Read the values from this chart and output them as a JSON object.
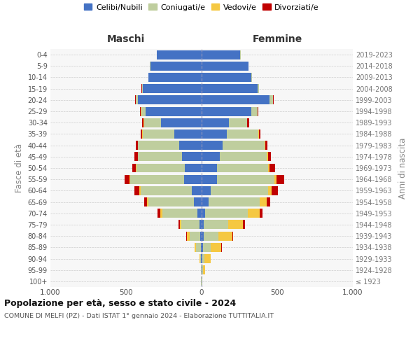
{
  "age_groups": [
    "100+",
    "95-99",
    "90-94",
    "85-89",
    "80-84",
    "75-79",
    "70-74",
    "65-69",
    "60-64",
    "55-59",
    "50-54",
    "45-49",
    "40-44",
    "35-39",
    "30-34",
    "25-29",
    "20-24",
    "15-19",
    "10-14",
    "5-9",
    "0-4"
  ],
  "birth_years": [
    "≤ 1923",
    "1924-1928",
    "1929-1933",
    "1934-1938",
    "1939-1943",
    "1944-1948",
    "1949-1953",
    "1954-1958",
    "1959-1963",
    "1964-1968",
    "1969-1973",
    "1974-1978",
    "1979-1983",
    "1984-1988",
    "1989-1993",
    "1994-1998",
    "1999-2003",
    "2004-2008",
    "2009-2013",
    "2014-2018",
    "2019-2023"
  ],
  "males": {
    "celibi": [
      2,
      2,
      3,
      5,
      10,
      15,
      30,
      50,
      65,
      115,
      110,
      130,
      150,
      180,
      270,
      370,
      420,
      390,
      350,
      340,
      295
    ],
    "coniugati": [
      1,
      2,
      8,
      30,
      70,
      120,
      230,
      300,
      340,
      355,
      320,
      290,
      270,
      210,
      110,
      30,
      15,
      5,
      2,
      2,
      2
    ],
    "vedovi": [
      0,
      2,
      5,
      10,
      15,
      10,
      15,
      10,
      8,
      5,
      3,
      3,
      2,
      2,
      2,
      2,
      2,
      0,
      0,
      0,
      0
    ],
    "divorziati": [
      0,
      0,
      0,
      2,
      5,
      8,
      15,
      20,
      30,
      35,
      25,
      20,
      15,
      12,
      10,
      5,
      3,
      2,
      0,
      0,
      0
    ]
  },
  "females": {
    "nubili": [
      2,
      3,
      5,
      8,
      12,
      15,
      25,
      45,
      60,
      100,
      100,
      120,
      140,
      165,
      180,
      330,
      450,
      370,
      330,
      310,
      255
    ],
    "coniugate": [
      2,
      5,
      15,
      50,
      100,
      160,
      280,
      340,
      380,
      380,
      340,
      310,
      275,
      210,
      120,
      40,
      20,
      8,
      3,
      2,
      2
    ],
    "vedove": [
      2,
      15,
      40,
      70,
      90,
      100,
      80,
      45,
      25,
      15,
      10,
      8,
      5,
      4,
      3,
      2,
      2,
      0,
      0,
      0,
      0
    ],
    "divorziate": [
      0,
      2,
      2,
      5,
      8,
      10,
      18,
      25,
      40,
      50,
      35,
      20,
      15,
      10,
      10,
      5,
      3,
      2,
      0,
      0,
      0
    ]
  },
  "colors": {
    "celibi_nubili": "#4472C4",
    "coniugati_e": "#BFCE9E",
    "vedovi_e": "#F5C842",
    "divorziati_e": "#C00000"
  },
  "title1": "Popolazione per età, sesso e stato civile - 2024",
  "title2": "COMUNE DI MELFI (PZ) - Dati ISTAT 1° gennaio 2024 - Elaborazione TUTTITALIA.IT",
  "xlabel_left": "Maschi",
  "xlabel_right": "Femmine",
  "ylabel_left": "Fasce di età",
  "ylabel_right": "Anni di nascita",
  "xlim": 1000,
  "legend_labels": [
    "Celibi/Nubili",
    "Coniugati/e",
    "Vedovi/e",
    "Divorziati/e"
  ],
  "background_color": "#ffffff",
  "axes_bg": "#f7f7f7"
}
